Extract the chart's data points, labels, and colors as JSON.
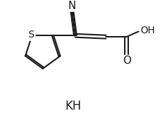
{
  "bg_color": "#ffffff",
  "line_color": "#1a1a1a",
  "line_width": 1.5,
  "font_size": 10,
  "kh_text": "KH",
  "n_text": "N",
  "s_text": "S",
  "oh_text": "OH",
  "o_text": "O",
  "figsize": [
    2.31,
    1.73
  ],
  "dpi": 100
}
